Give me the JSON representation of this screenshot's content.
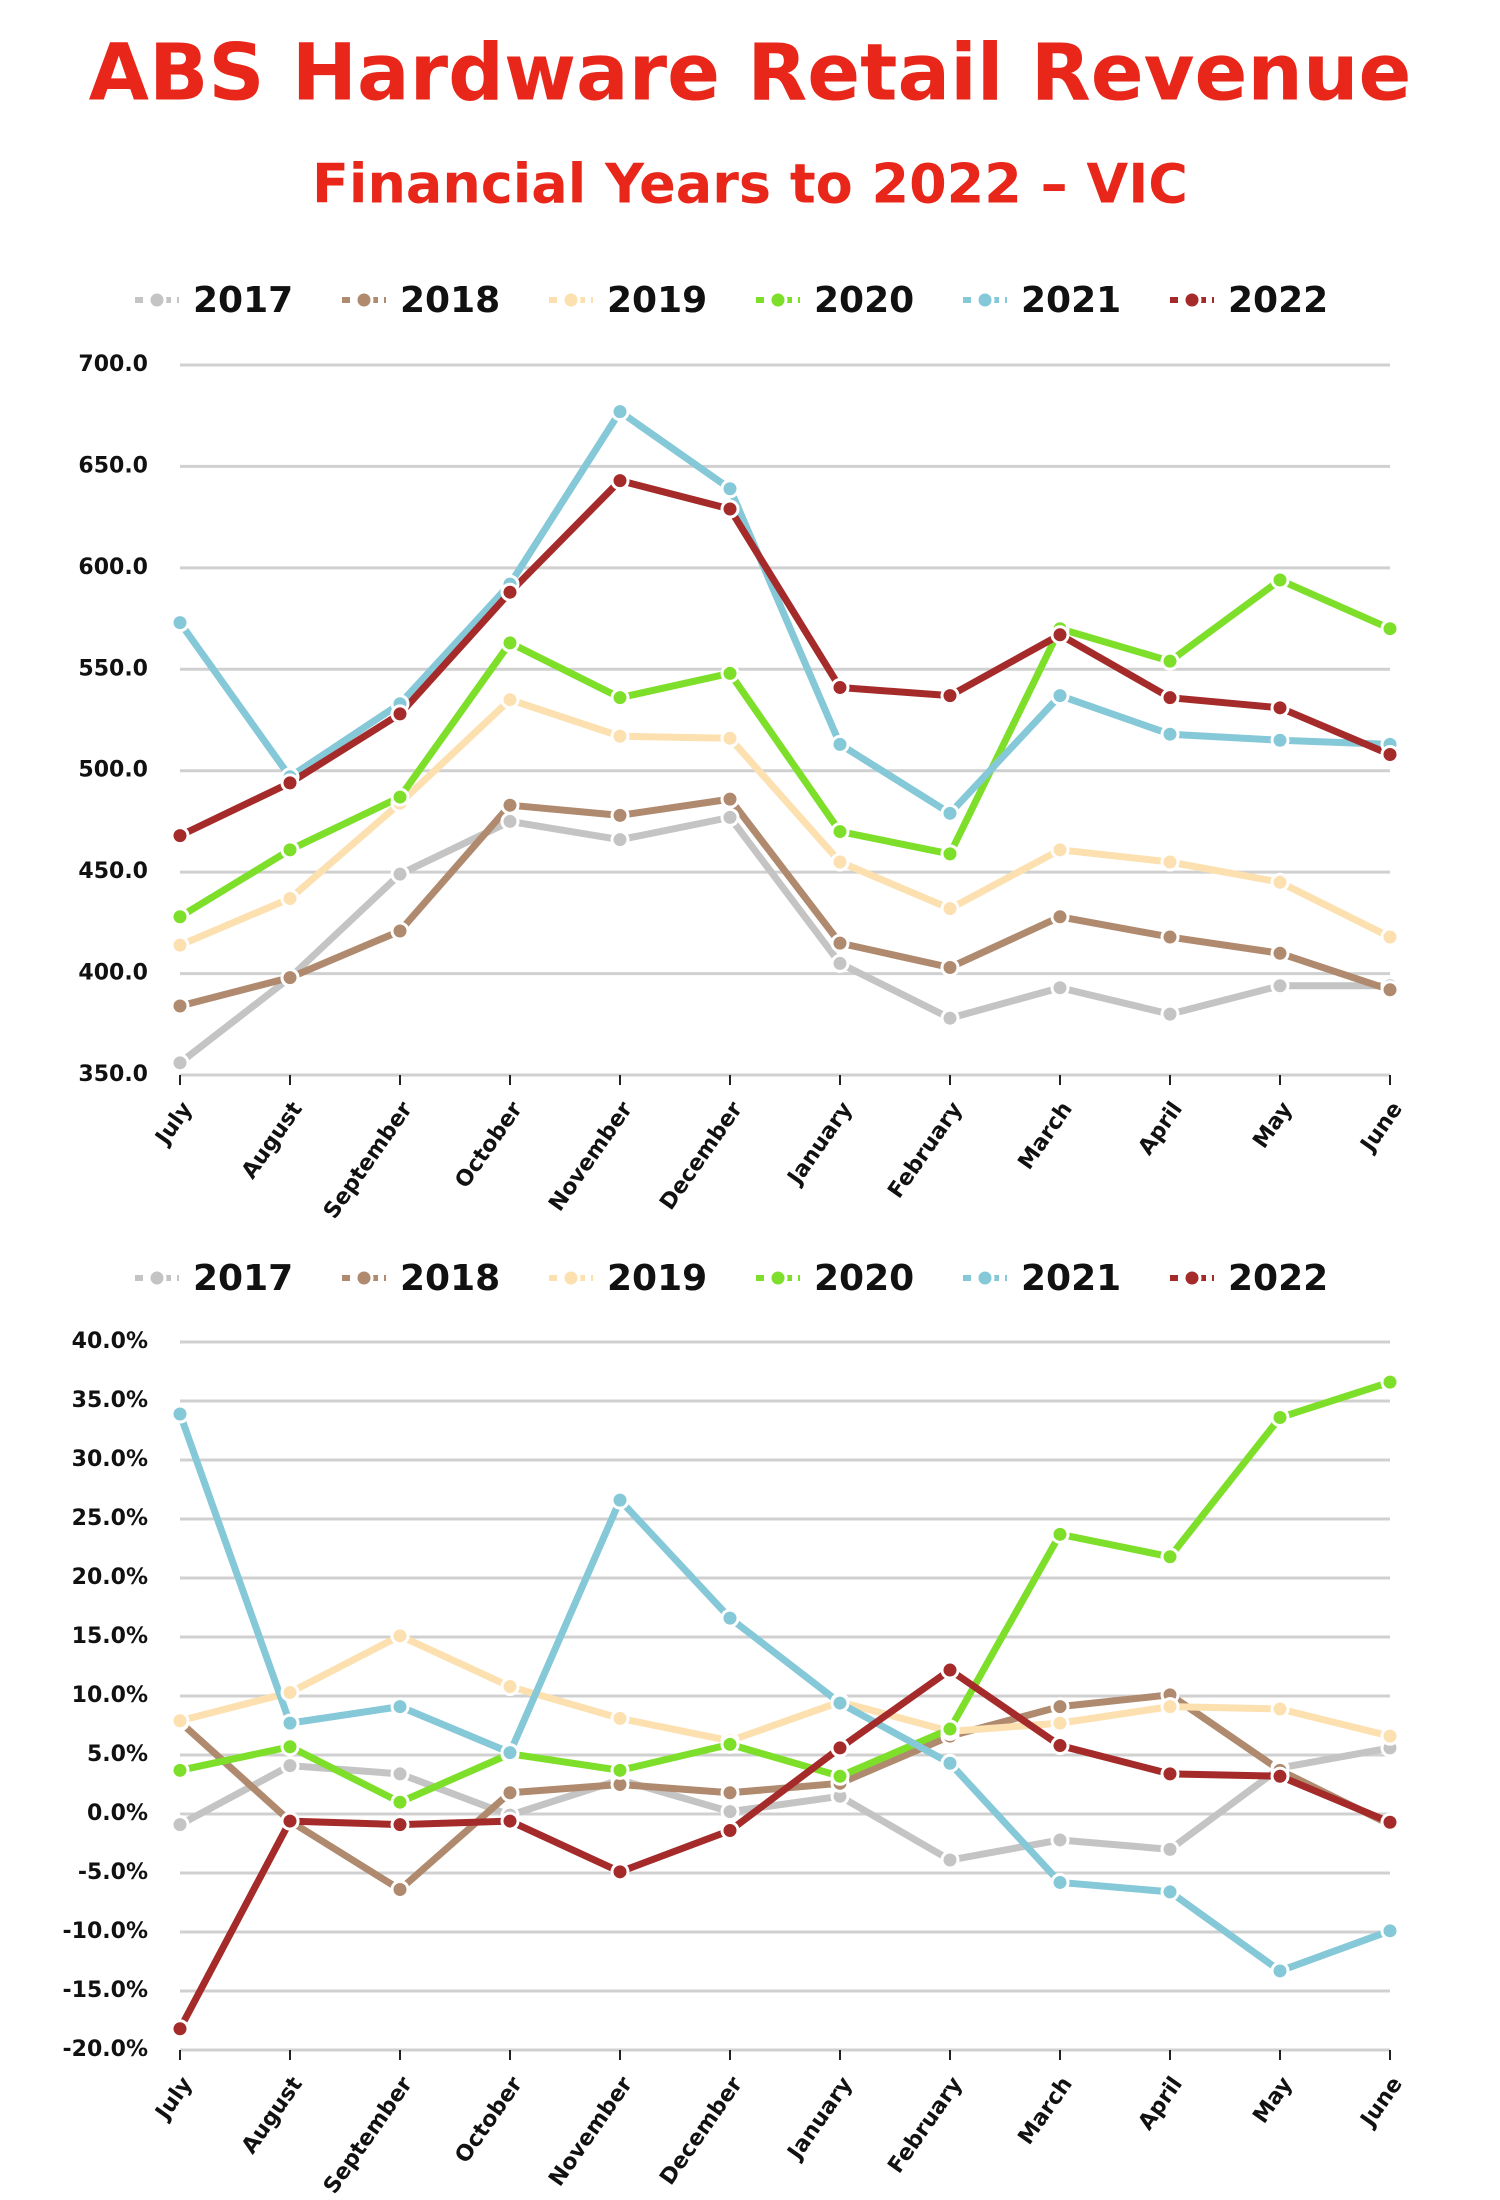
{
  "title": "ABS Hardware Retail Revenue",
  "subtitle": "Financial Years to 2022 – VIC",
  "chart_data": [
    {
      "type": "line",
      "categories": [
        "July",
        "August",
        "September",
        "October",
        "November",
        "December",
        "January",
        "February",
        "March",
        "April",
        "May",
        "June"
      ],
      "ylim": [
        350,
        700
      ],
      "yticks": [
        {
          "value": 350,
          "label": "350.0"
        },
        {
          "value": 400,
          "label": "400.0"
        },
        {
          "value": 450,
          "label": "450.0"
        },
        {
          "value": 500,
          "label": "500.0"
        },
        {
          "value": 550,
          "label": "550.0"
        },
        {
          "value": 600,
          "label": "600.0"
        },
        {
          "value": 650,
          "label": "650.0"
        },
        {
          "value": 700,
          "label": "700.0"
        }
      ],
      "grid": true,
      "legend": "top",
      "series": [
        {
          "name": "2017",
          "color": "#c4c4c4",
          "values": [
            356,
            398,
            449,
            475,
            466,
            477,
            405,
            378,
            393,
            380,
            394,
            394
          ]
        },
        {
          "name": "2018",
          "color": "#b08a6e",
          "values": [
            384,
            398,
            421,
            483,
            478,
            486,
            415,
            403,
            428,
            418,
            410,
            392
          ]
        },
        {
          "name": "2019",
          "color": "#fce0b0",
          "values": [
            414,
            437,
            484,
            535,
            517,
            516,
            455,
            432,
            461,
            455,
            445,
            418
          ]
        },
        {
          "name": "2020",
          "color": "#7ddf2a",
          "values": [
            428,
            461,
            487,
            563,
            536,
            548,
            470,
            459,
            570,
            554,
            594,
            570
          ]
        },
        {
          "name": "2021",
          "color": "#85c8d8",
          "values": [
            573,
            497,
            533,
            592,
            677,
            639,
            513,
            479,
            537,
            518,
            515,
            513
          ]
        },
        {
          "name": "2022",
          "color": "#a52a2a",
          "values": [
            468,
            494,
            528,
            588,
            643,
            629,
            541,
            537,
            567,
            536,
            531,
            508
          ]
        }
      ]
    },
    {
      "type": "line",
      "categories": [
        "July",
        "August",
        "September",
        "October",
        "November",
        "December",
        "January",
        "February",
        "March",
        "April",
        "May",
        "June"
      ],
      "ylim": [
        -20,
        40
      ],
      "yticks": [
        {
          "value": -20,
          "label": "-20.0%"
        },
        {
          "value": -15,
          "label": "-15.0%"
        },
        {
          "value": -10,
          "label": "-10.0%"
        },
        {
          "value": -5,
          "label": "-5.0%"
        },
        {
          "value": 0,
          "label": "0.0%"
        },
        {
          "value": 5,
          "label": "5.0%"
        },
        {
          "value": 10,
          "label": "10.0%"
        },
        {
          "value": 15,
          "label": "15.0%"
        },
        {
          "value": 20,
          "label": "20.0%"
        },
        {
          "value": 25,
          "label": "25.0%"
        },
        {
          "value": 30,
          "label": "30.0%"
        },
        {
          "value": 35,
          "label": "35.0%"
        },
        {
          "value": 40,
          "label": "40.0%"
        }
      ],
      "grid": true,
      "legend": "top",
      "series": [
        {
          "name": "2017",
          "color": "#c4c4c4",
          "values": [
            -0.9,
            4.1,
            3.4,
            -0.1,
            2.9,
            0.2,
            1.5,
            -3.9,
            -2.2,
            -3.0,
            3.9,
            5.6
          ]
        },
        {
          "name": "2018",
          "color": "#b08a6e",
          "values": [
            7.8,
            -0.6,
            -6.4,
            1.8,
            2.5,
            1.8,
            2.6,
            6.6,
            9.1,
            10.1,
            3.7,
            -0.9
          ]
        },
        {
          "name": "2019",
          "color": "#fce0b0",
          "values": [
            7.9,
            10.3,
            15.1,
            10.8,
            8.1,
            6.2,
            9.5,
            7.0,
            7.7,
            9.1,
            8.9,
            6.6
          ]
        },
        {
          "name": "2020",
          "color": "#7ddf2a",
          "values": [
            3.7,
            5.7,
            1.0,
            5.1,
            3.7,
            5.9,
            3.2,
            7.2,
            23.7,
            21.8,
            33.6,
            36.6
          ]
        },
        {
          "name": "2021",
          "color": "#85c8d8",
          "values": [
            33.9,
            7.7,
            9.1,
            5.2,
            26.6,
            16.6,
            9.4,
            4.3,
            -5.8,
            -6.6,
            -13.3,
            -9.9
          ]
        },
        {
          "name": "2022",
          "color": "#a52a2a",
          "values": [
            -18.2,
            -0.6,
            -0.9,
            -0.6,
            -4.9,
            -1.4,
            5.6,
            12.2,
            5.8,
            3.4,
            3.2,
            -0.7
          ]
        }
      ]
    }
  ]
}
